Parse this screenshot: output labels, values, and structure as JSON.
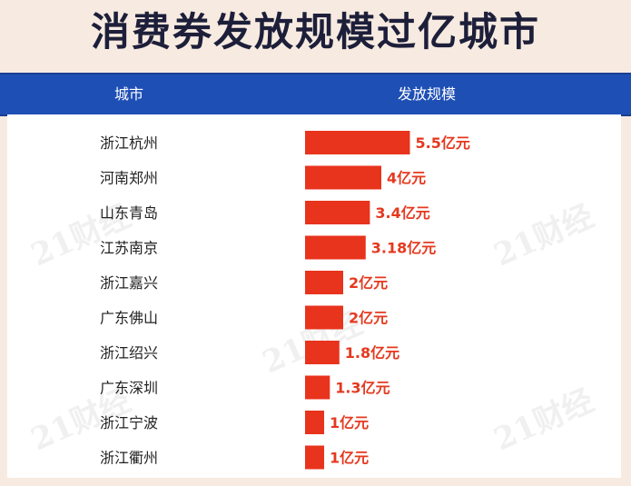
{
  "title": "消费券发放规模过亿城市",
  "header": {
    "city": "城市",
    "scale": "发放规模"
  },
  "watermark": "21财经",
  "colors": {
    "bar": "#e8331d",
    "header_bg": "#1e4fb5",
    "value_text": "#e5391f"
  },
  "chart_data": {
    "type": "bar",
    "orientation": "horizontal",
    "title": "消费券发放规模过亿城市",
    "xlabel": "发放规模",
    "ylabel": "城市",
    "unit": "亿元",
    "categories": [
      "浙江杭州",
      "河南郑州",
      "山东青岛",
      "江苏南京",
      "浙江嘉兴",
      "广东佛山",
      "浙江绍兴",
      "广东深圳",
      "浙江宁波",
      "浙江衢州"
    ],
    "values": [
      5.5,
      4,
      3.4,
      3.18,
      2,
      2,
      1.8,
      1.3,
      1,
      1
    ],
    "value_labels": [
      "5.5亿元",
      "4亿元",
      "3.4亿元",
      "3.18亿元",
      "2亿元",
      "2亿元",
      "1.8亿元",
      "1.3亿元",
      "1亿元",
      "1亿元"
    ],
    "grid": false,
    "legend": "none"
  }
}
